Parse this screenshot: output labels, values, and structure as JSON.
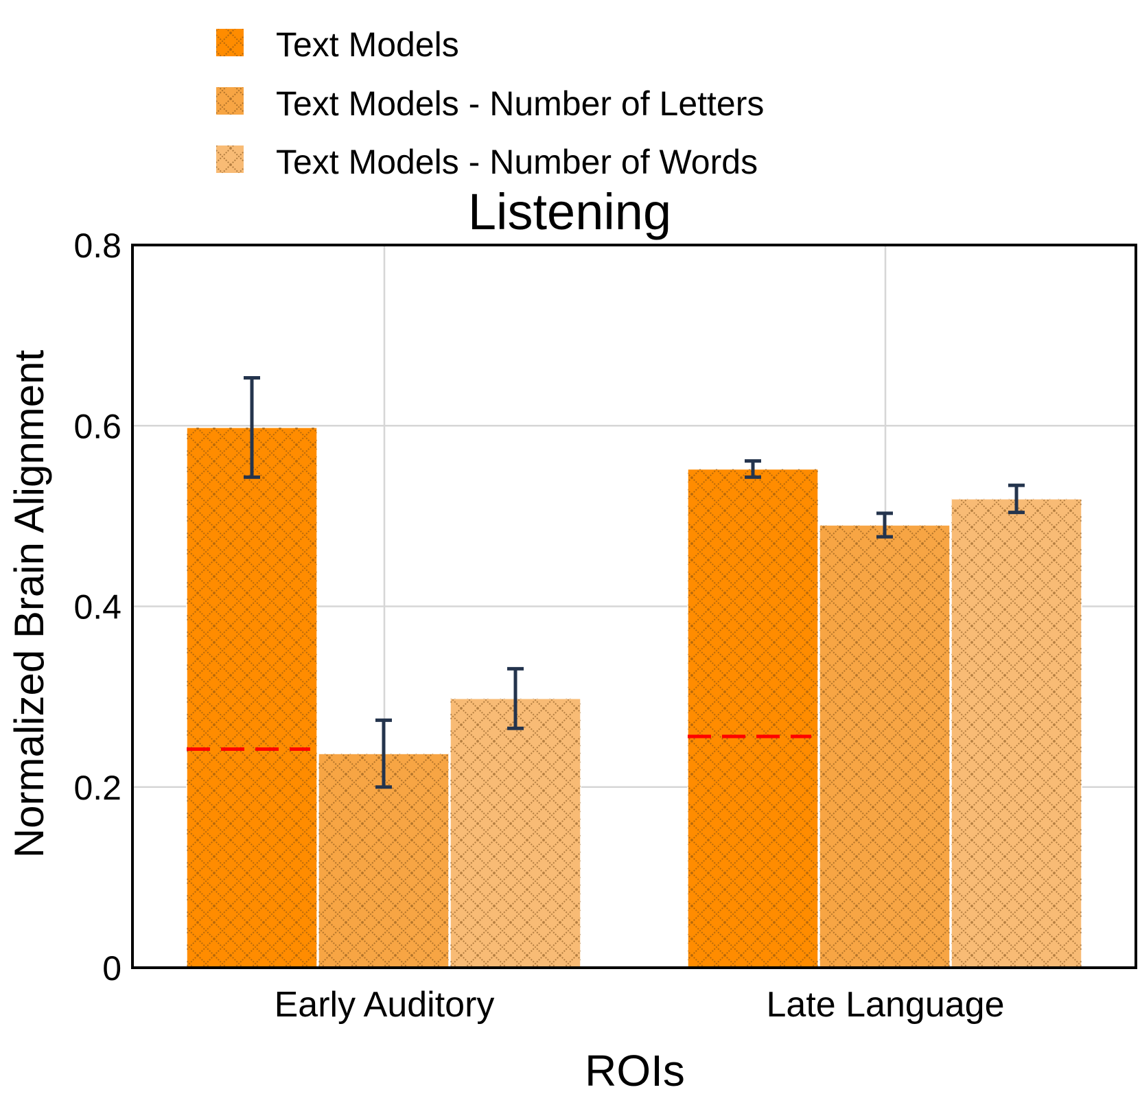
{
  "chart_data": {
    "type": "bar",
    "title": "Listening",
    "xlabel": "ROIs",
    "ylabel": "Normalized Brain Alignment",
    "ylim": [
      0,
      0.8
    ],
    "yticks": [
      0,
      0.2,
      0.4,
      0.6,
      0.8
    ],
    "ytick_labels": [
      "0",
      "0.2",
      "0.4",
      "0.6",
      "0.8"
    ],
    "grid": true,
    "legend_position": "top-left",
    "categories": [
      "Early Auditory",
      "Late Language"
    ],
    "series": [
      {
        "name": "Text Models",
        "values": [
          0.598,
          0.552
        ],
        "errors": [
          0.055,
          0.009
        ],
        "color": "#ff8c00"
      },
      {
        "name": "Text Models - Number of Letters",
        "values": [
          0.237,
          0.49
        ],
        "errors": [
          0.037,
          0.013
        ],
        "color": "#f7a544"
      },
      {
        "name": "Text Models - Number of Words",
        "values": [
          0.298,
          0.519
        ],
        "errors": [
          0.033,
          0.015
        ],
        "color": "#f8bb75"
      }
    ],
    "baseline": {
      "values": [
        0.242,
        0.256
      ],
      "color": "#ff0000",
      "style": "dashed"
    },
    "hatch": "cross",
    "error_bar_color": "#24344d"
  }
}
